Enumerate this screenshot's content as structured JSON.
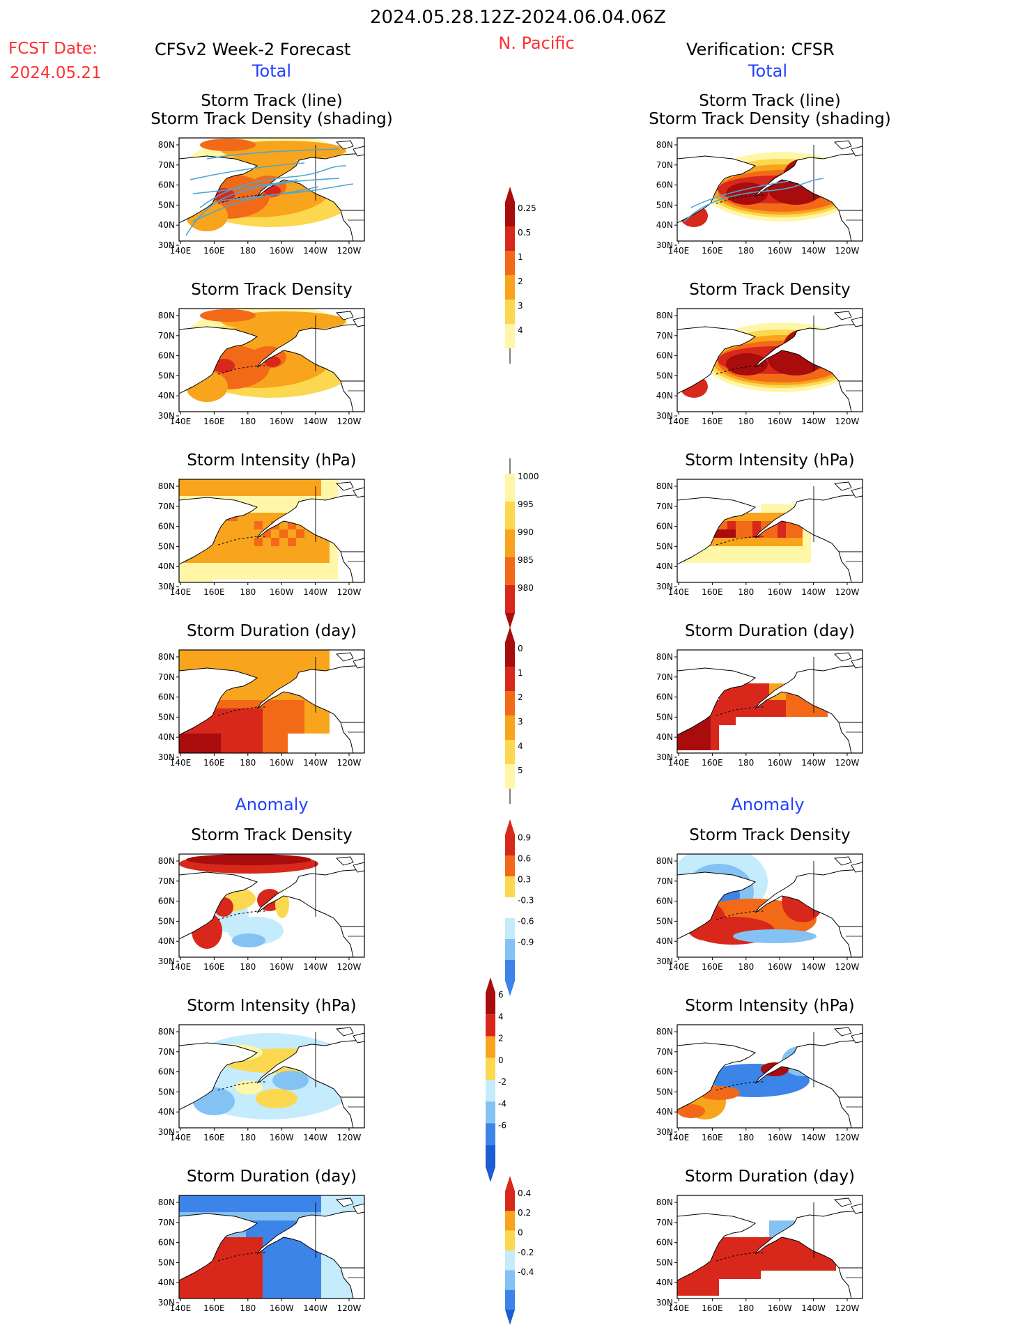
{
  "header": {
    "date_range": "2024.05.28.12Z-2024.06.04.06Z",
    "region": "N. Pacific",
    "fcst_label": "FCST Date:",
    "fcst_date": "2024.05.21",
    "forecast_title": "CFSv2 Week-2 Forecast",
    "verification_title": "Verification: CFSR"
  },
  "sections": {
    "total": "Total",
    "anomaly": "Anomaly"
  },
  "panel_titles": {
    "track": [
      "Storm Track (line)",
      "Storm Track Density (shading)"
    ],
    "density": "Storm Track Density",
    "intensity": "Storm Intensity (hPa)",
    "duration": "Storm Duration (day)"
  },
  "axes": {
    "lat_labels": [
      "80N",
      "70N",
      "60N",
      "50N",
      "40N",
      "30N"
    ],
    "lon_labels": [
      "140E",
      "160E",
      "180",
      "160W",
      "140W",
      "120W"
    ]
  },
  "colors": {
    "title_red": "#ff3030",
    "section_blue": "#2040ff",
    "track_line": "#4aa6d6",
    "pos": [
      "#fff6a8",
      "#fcd850",
      "#f8a41c",
      "#f26a18",
      "#d8281c",
      "#a80c0c"
    ],
    "neg": [
      "#c4ecfc",
      "#84c2f4",
      "#3c84e8",
      "#1c5cd4"
    ]
  },
  "colorbars": {
    "density_total": [
      "0.25",
      "0.5",
      "1",
      "2",
      "3",
      "4"
    ],
    "intensity_total": [
      "1000",
      "995",
      "990",
      "985",
      "980"
    ],
    "duration_total": [
      "0",
      "1",
      "2",
      "3",
      "4",
      "5"
    ],
    "density_anom": [
      "0.9",
      "0.6",
      "0.3",
      "-0.3",
      "-0.6",
      "-0.9"
    ],
    "intensity_anom": [
      "6",
      "4",
      "2",
      "0",
      "-2",
      "-4",
      "-6"
    ],
    "duration_anom": [
      "0.4",
      "0.2",
      "0",
      "-0.2",
      "-0.4"
    ]
  }
}
